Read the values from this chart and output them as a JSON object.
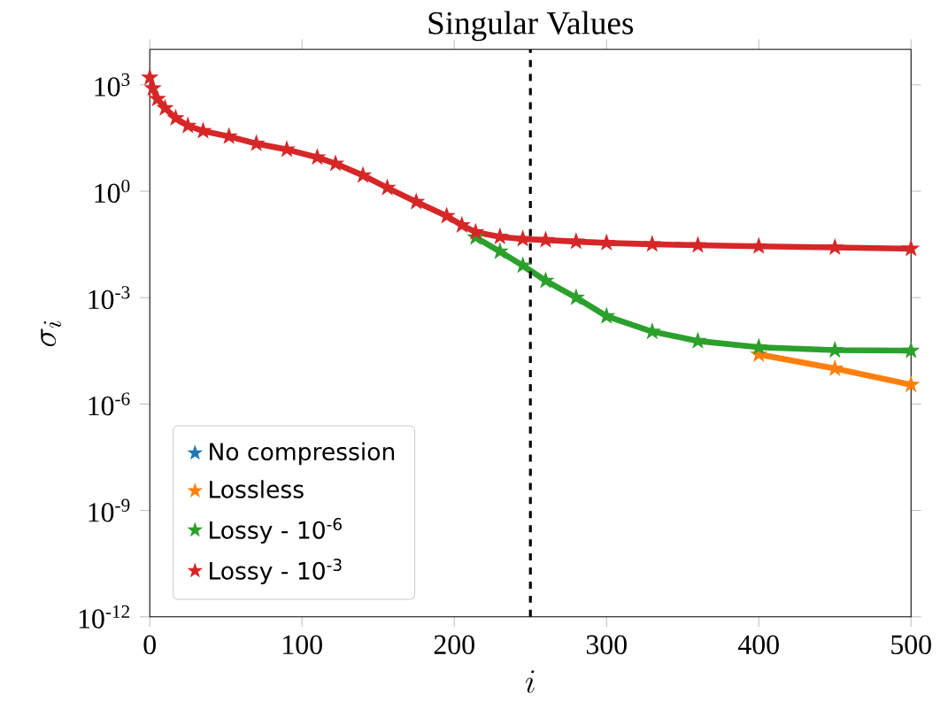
{
  "chart_data": {
    "type": "line",
    "title": "Singular Values",
    "xlabel": "i",
    "ylabel": "\\sigma_i",
    "x": [
      0,
      2,
      5,
      10,
      17,
      25,
      35,
      52,
      70,
      90,
      110,
      122,
      140,
      156,
      175,
      195,
      205,
      214,
      230,
      245,
      260,
      280,
      300,
      330,
      360,
      400,
      450,
      500
    ],
    "series": [
      {
        "name": "No compression",
        "color": "#1f77b4",
        "values": [
          null,
          null,
          null,
          null,
          null,
          null,
          null,
          null,
          null,
          null,
          null,
          null,
          null,
          null,
          null,
          null,
          null,
          null,
          null,
          null,
          null,
          null,
          null,
          null,
          null,
          null,
          null,
          null
        ]
      },
      {
        "name": "Lossless",
        "color": "#ff7f0e",
        "values": [
          null,
          null,
          null,
          null,
          null,
          null,
          null,
          null,
          null,
          null,
          null,
          null,
          null,
          null,
          null,
          null,
          null,
          null,
          null,
          null,
          null,
          null,
          null,
          null,
          null,
          2.5e-05,
          1e-05,
          3.5e-06
        ]
      },
      {
        "name": "Lossy - 10$^{-6}$",
        "color": "#2ca02c",
        "values": [
          null,
          null,
          null,
          null,
          null,
          null,
          null,
          null,
          null,
          null,
          null,
          null,
          null,
          null,
          null,
          null,
          null,
          0.05,
          0.02,
          0.008,
          0.003,
          0.001,
          0.0003,
          0.00011,
          6e-05,
          4e-05,
          3.3e-05,
          3.2e-05
        ]
      },
      {
        "name": "Lossy - 10$^{-3}$",
        "color": "#d62728",
        "values": [
          1600.0,
          800.0,
          400.0,
          220.0,
          115.0,
          70,
          50,
          35,
          22,
          15,
          9,
          6,
          2.8,
          1.25,
          0.5,
          0.2,
          0.11,
          0.07,
          0.052,
          0.045,
          0.042,
          0.038,
          0.035,
          0.032,
          0.03,
          0.028,
          0.026,
          0.024
        ]
      }
    ],
    "log": "y",
    "marker": "star",
    "legend": "bottom left",
    "xlim": [
      0,
      500
    ],
    "xticks": [
      0,
      100,
      200,
      300,
      400,
      500
    ],
    "ylim": [
      1e-12,
      10000.0
    ],
    "yticks": [
      {
        "value": 1e-12,
        "label": "10$^{-12}$"
      },
      {
        "value": 1e-09,
        "label": "10$^{-9}$"
      },
      {
        "value": 1e-06,
        "label": "10$^{-6}$"
      },
      {
        "value": 0.001,
        "label": "10$^{-3}$"
      },
      {
        "value": 1,
        "label": "10$^{0}$"
      },
      {
        "value": 1000.0,
        "label": "10$^{3}$"
      }
    ],
    "ref_lines": [
      {
        "axis": "x",
        "value": 250,
        "color": "#000000",
        "line_style": "dashed"
      }
    ]
  }
}
